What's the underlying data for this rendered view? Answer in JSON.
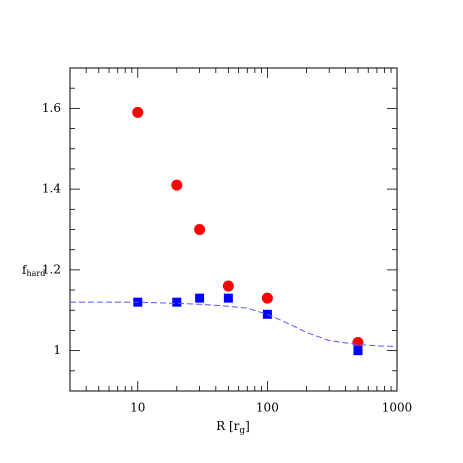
{
  "chart_data": {
    "type": "scatter",
    "xlabel": [
      "R [r",
      "g",
      "]"
    ],
    "ylabel": [
      "f",
      "hard"
    ],
    "xlog": true,
    "xlim": [
      3,
      1000
    ],
    "xticks": [
      10,
      100,
      1000
    ],
    "xminorticks": [
      3,
      4,
      5,
      6,
      7,
      8,
      9,
      20,
      30,
      40,
      50,
      60,
      70,
      80,
      90,
      200,
      300,
      400,
      500,
      600,
      700,
      800,
      900
    ],
    "ylim": [
      0.9,
      1.7
    ],
    "yticks": [
      1,
      1.2,
      1.4,
      1.6
    ],
    "yminorticks": [
      0.95,
      1.05,
      1.1,
      1.15,
      1.25,
      1.3,
      1.35,
      1.45,
      1.5,
      1.55,
      1.65
    ],
    "series": [
      {
        "marker": "circle",
        "color": "#ff0000",
        "x": [
          10,
          20,
          30,
          50,
          100,
          500
        ],
        "values": [
          1.59,
          1.41,
          1.3,
          1.16,
          1.13,
          1.02
        ]
      },
      {
        "marker": "square",
        "color": "#0000ff",
        "x": [
          10,
          20,
          30,
          50,
          100,
          500
        ],
        "values": [
          1.12,
          1.12,
          1.13,
          1.13,
          1.09,
          1.0
        ]
      },
      {
        "marker": "dashed-line",
        "color": "#5555ff",
        "x": [
          3,
          5,
          10,
          20,
          30,
          50,
          70,
          100,
          150,
          200,
          300,
          500,
          700,
          1000
        ],
        "values": [
          1.12,
          1.12,
          1.12,
          1.117,
          1.115,
          1.11,
          1.105,
          1.09,
          1.065,
          1.045,
          1.025,
          1.015,
          1.012,
          1.01
        ]
      }
    ]
  }
}
